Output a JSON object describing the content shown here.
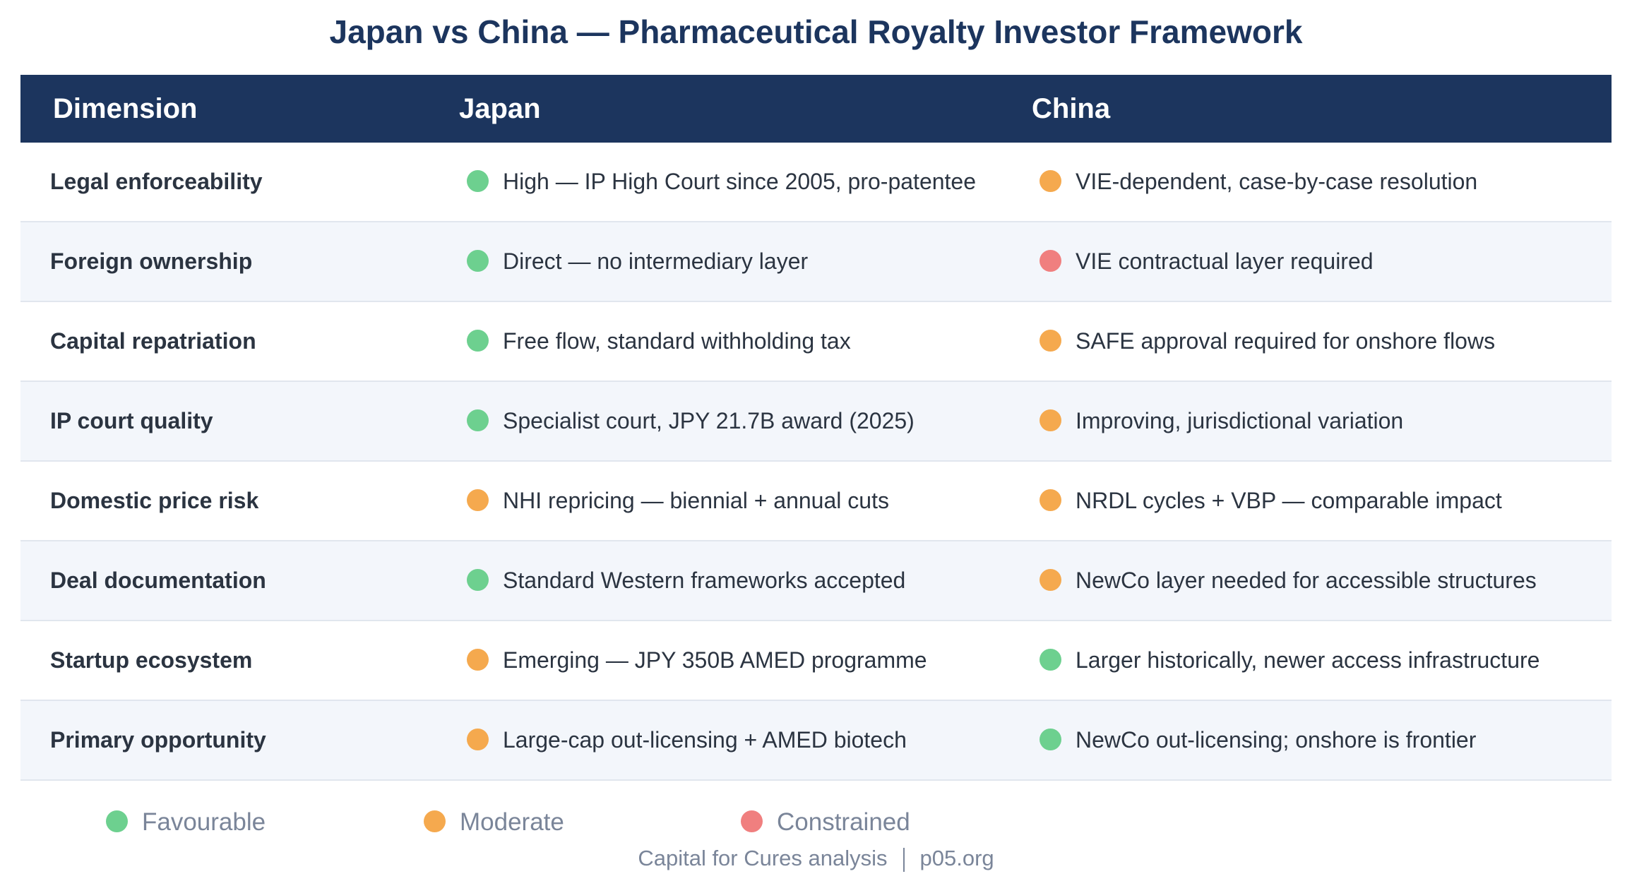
{
  "title": "Japan vs China — Pharmaceutical Royalty Investor Framework",
  "table": {
    "header": [
      "Dimension",
      "Japan",
      "China"
    ],
    "rows": [
      {
        "dimension": "Legal enforceability",
        "japan": {
          "text": "High — IP High Court since 2005, pro-patentee",
          "color": "#6dd08f"
        },
        "china": {
          "text": "VIE-dependent, case-by-case resolution",
          "color": "#f5a94e"
        }
      },
      {
        "dimension": "Foreign ownership",
        "japan": {
          "text": "Direct — no intermediary layer",
          "color": "#6dd08f"
        },
        "china": {
          "text": "VIE contractual layer required",
          "color": "#f07f7f"
        }
      },
      {
        "dimension": "Capital repatriation",
        "japan": {
          "text": "Free flow, standard withholding tax",
          "color": "#6dd08f"
        },
        "china": {
          "text": "SAFE approval required for onshore flows",
          "color": "#f5a94e"
        }
      },
      {
        "dimension": "IP court quality",
        "japan": {
          "text": "Specialist court, JPY 21.7B award (2025)",
          "color": "#6dd08f"
        },
        "china": {
          "text": "Improving, jurisdictional variation",
          "color": "#f5a94e"
        }
      },
      {
        "dimension": "Domestic price risk",
        "japan": {
          "text": "NHI repricing — biennial + annual cuts",
          "color": "#f5a94e"
        },
        "china": {
          "text": "NRDL cycles + VBP — comparable impact",
          "color": "#f5a94e"
        }
      },
      {
        "dimension": "Deal documentation",
        "japan": {
          "text": "Standard Western frameworks accepted",
          "color": "#6dd08f"
        },
        "china": {
          "text": "NewCo layer needed for accessible structures",
          "color": "#f5a94e"
        }
      },
      {
        "dimension": "Startup ecosystem",
        "japan": {
          "text": "Emerging — JPY 350B AMED programme",
          "color": "#f5a94e"
        },
        "china": {
          "text": "Larger historically, newer access infrastructure",
          "color": "#6dd08f"
        }
      },
      {
        "dimension": "Primary opportunity",
        "japan": {
          "text": "Large-cap out-licensing + AMED biotech",
          "color": "#f5a94e"
        },
        "china": {
          "text": "NewCo out-licensing; onshore is frontier",
          "color": "#6dd08f"
        }
      }
    ]
  },
  "legend": [
    {
      "label": "Favourable",
      "color": "#6dd08f"
    },
    {
      "label": "Moderate",
      "color": "#f5a94e"
    },
    {
      "label": "Constrained",
      "color": "#f07f7f"
    }
  ],
  "footer": {
    "source": "Capital for Cures analysis",
    "site": "p05.org"
  }
}
